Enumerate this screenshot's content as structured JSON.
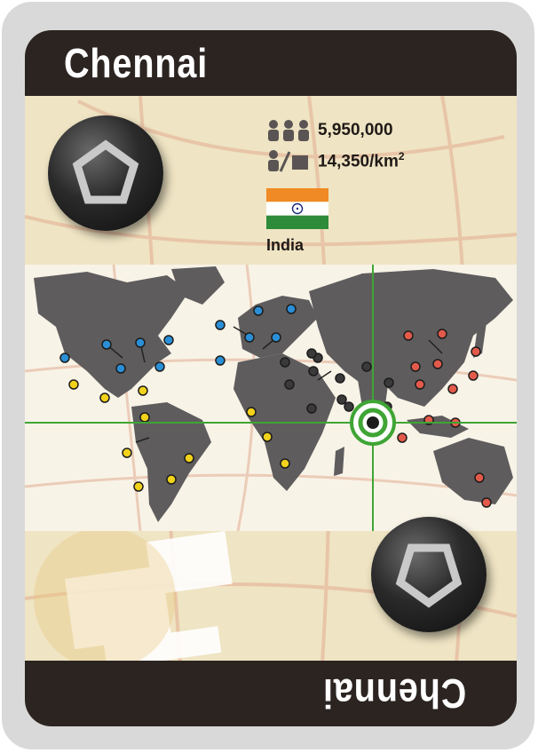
{
  "card": {
    "city": "Chennai",
    "city_inverted": "Chennai",
    "population": "5,950,000",
    "density": "14,350/km",
    "density_sup": "2",
    "country": "India"
  },
  "colors": {
    "bar": "#2b2420",
    "parchment": "#efe4c3",
    "continent": "#5e5c5d",
    "crosshair": "#3fa535",
    "blue": "#2a8fd6",
    "yellow": "#f2d21a",
    "black": "#3a3a3a",
    "red": "#e35a4a"
  },
  "icons": [
    "population-icon",
    "density-icon",
    "pentagon-icon",
    "target-icon",
    "flag-icon"
  ]
}
